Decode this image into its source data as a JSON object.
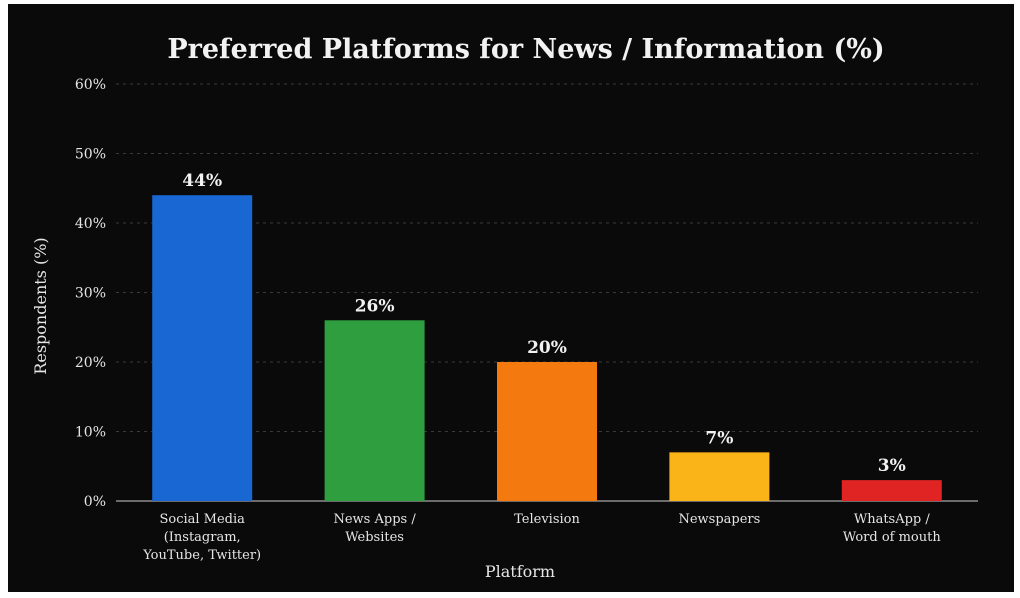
{
  "chart_data": {
    "type": "bar",
    "title": "Preferred Platforms for News / Information (%)",
    "xlabel": "Platform",
    "ylabel": "Respondents (%)",
    "ylim": [
      0,
      60
    ],
    "yticks": [
      "0%",
      "10%",
      "20%",
      "30%",
      "40%",
      "50%",
      "60%"
    ],
    "grid": true,
    "categories": [
      [
        "Social Media",
        "(Instagram,",
        "YouTube, Twitter)"
      ],
      [
        "News Apps /",
        "Websites"
      ],
      [
        "Television"
      ],
      [
        "Newspapers"
      ],
      [
        "WhatsApp /",
        "Word of mouth"
      ]
    ],
    "values": [
      44,
      26,
      20,
      7,
      3
    ],
    "data_labels": [
      "44%",
      "26%",
      "20%",
      "7%",
      "3%"
    ],
    "colors": [
      "#1967d2",
      "#2e9e3e",
      "#f47a10",
      "#fbb417",
      "#e02424"
    ],
    "background": "#0a0a0a"
  }
}
